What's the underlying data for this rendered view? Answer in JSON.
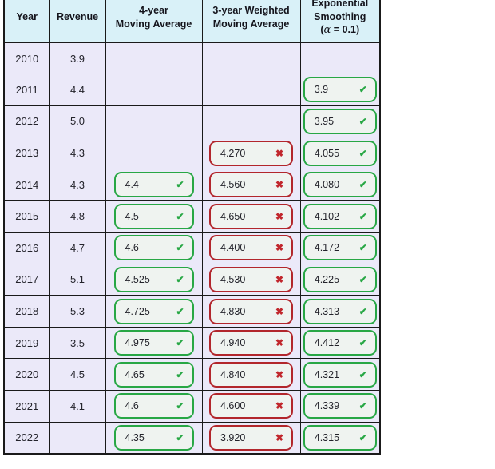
{
  "header": {
    "year": "Year",
    "revenue": "Revenue",
    "ma4_line1": "4-year",
    "ma4_line2": "Moving Average",
    "wma3_line1": "3-year Weighted",
    "wma3_line2": "Moving Average",
    "exp_line1": "Exponential",
    "exp_line2": "Smoothing",
    "exp_open": "(",
    "exp_alpha": "α",
    "exp_rest": " = 0.1)"
  },
  "icons": {
    "correct": "✔",
    "incorrect": "✖"
  },
  "colors": {
    "header_bg": "#d9f1f8",
    "row_bg": "#ebe9f9",
    "box_bg": "#eff3f0",
    "grid_border": "#1a1a1a",
    "correct": "#28a745",
    "incorrect": "#b2262c",
    "incorrect_mark": "#c1272d"
  },
  "rows": [
    {
      "year": "2010",
      "revenue": "3.9",
      "ma4": null,
      "wma3": null,
      "exp": null
    },
    {
      "year": "2011",
      "revenue": "4.4",
      "ma4": null,
      "wma3": null,
      "exp": {
        "value": "3.9",
        "status": "correct"
      }
    },
    {
      "year": "2012",
      "revenue": "5.0",
      "ma4": null,
      "wma3": null,
      "exp": {
        "value": "3.95",
        "status": "correct"
      }
    },
    {
      "year": "2013",
      "revenue": "4.3",
      "ma4": null,
      "wma3": {
        "value": "4.270",
        "status": "incorrect"
      },
      "exp": {
        "value": "4.055",
        "status": "correct"
      }
    },
    {
      "year": "2014",
      "revenue": "4.3",
      "ma4": {
        "value": "4.4",
        "status": "correct"
      },
      "wma3": {
        "value": "4.560",
        "status": "incorrect"
      },
      "exp": {
        "value": "4.080",
        "status": "correct"
      }
    },
    {
      "year": "2015",
      "revenue": "4.8",
      "ma4": {
        "value": "4.5",
        "status": "correct"
      },
      "wma3": {
        "value": "4.650",
        "status": "incorrect"
      },
      "exp": {
        "value": "4.102",
        "status": "correct"
      }
    },
    {
      "year": "2016",
      "revenue": "4.7",
      "ma4": {
        "value": "4.6",
        "status": "correct"
      },
      "wma3": {
        "value": "4.400",
        "status": "incorrect"
      },
      "exp": {
        "value": "4.172",
        "status": "correct"
      }
    },
    {
      "year": "2017",
      "revenue": "5.1",
      "ma4": {
        "value": "4.525",
        "status": "correct"
      },
      "wma3": {
        "value": "4.530",
        "status": "incorrect"
      },
      "exp": {
        "value": "4.225",
        "status": "correct"
      }
    },
    {
      "year": "2018",
      "revenue": "5.3",
      "ma4": {
        "value": "4.725",
        "status": "correct"
      },
      "wma3": {
        "value": "4.830",
        "status": "incorrect"
      },
      "exp": {
        "value": "4.313",
        "status": "correct"
      }
    },
    {
      "year": "2019",
      "revenue": "3.5",
      "ma4": {
        "value": "4.975",
        "status": "correct"
      },
      "wma3": {
        "value": "4.940",
        "status": "incorrect"
      },
      "exp": {
        "value": "4.412",
        "status": "correct"
      }
    },
    {
      "year": "2020",
      "revenue": "4.5",
      "ma4": {
        "value": "4.65",
        "status": "correct"
      },
      "wma3": {
        "value": "4.840",
        "status": "incorrect"
      },
      "exp": {
        "value": "4.321",
        "status": "correct"
      }
    },
    {
      "year": "2021",
      "revenue": "4.1",
      "ma4": {
        "value": "4.6",
        "status": "correct"
      },
      "wma3": {
        "value": "4.600",
        "status": "incorrect"
      },
      "exp": {
        "value": "4.339",
        "status": "correct"
      }
    },
    {
      "year": "2022",
      "revenue": "",
      "ma4": {
        "value": "4.35",
        "status": "correct"
      },
      "wma3": {
        "value": "3.920",
        "status": "incorrect"
      },
      "exp": {
        "value": "4.315",
        "status": "correct"
      }
    }
  ]
}
